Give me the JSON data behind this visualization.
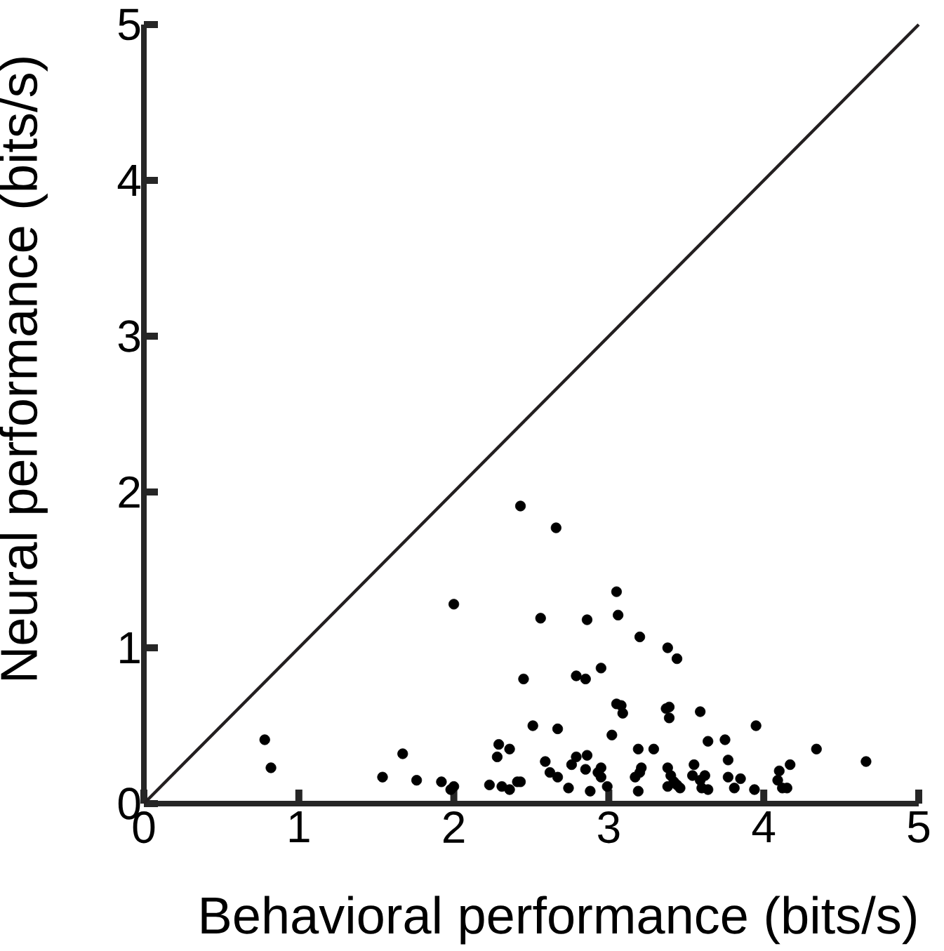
{
  "chart_data": {
    "type": "scatter",
    "xlabel": "Behavioral performance (bits/s)",
    "ylabel": "Neural performance (bits/s)",
    "xlim": [
      0,
      5
    ],
    "ylim": [
      0,
      5
    ],
    "xticks": [
      0,
      1,
      2,
      3,
      4,
      5
    ],
    "yticks": [
      0,
      1,
      2,
      3,
      4,
      5
    ],
    "grid": false,
    "series": [
      {
        "type": "line",
        "color": "#231f20",
        "x": [
          0,
          5
        ],
        "values": [
          0,
          5
        ],
        "marker": "none",
        "line_style": "solid"
      },
      {
        "color": "#000000",
        "marker": "circle",
        "x": [
          0.78,
          0.82,
          1.54,
          1.67,
          1.76,
          1.92,
          2.0,
          1.98,
          2.0,
          2.23,
          2.28,
          2.29,
          2.31,
          2.36,
          2.36,
          2.41,
          2.43,
          2.43,
          2.45,
          2.51,
          2.56,
          2.59,
          2.62,
          2.66,
          2.67,
          2.67,
          2.74,
          2.76,
          2.79,
          2.79,
          2.85,
          2.86,
          2.86,
          2.85,
          2.88,
          2.93,
          2.95,
          2.95,
          2.95,
          2.99,
          3.02,
          3.05,
          3.05,
          3.06,
          3.08,
          3.09,
          3.17,
          3.19,
          3.19,
          3.2,
          3.2,
          3.21,
          3.29,
          3.37,
          3.38,
          3.38,
          3.39,
          3.39,
          3.38,
          3.4,
          3.42,
          3.44,
          3.44,
          3.46,
          3.55,
          3.54,
          3.59,
          3.59,
          3.6,
          3.62,
          3.64,
          3.64,
          3.75,
          3.77,
          3.77,
          3.81,
          3.85,
          3.94,
          3.95,
          4.1,
          4.09,
          4.12,
          4.15,
          4.17,
          4.34,
          4.66
        ],
        "values": [
          0.41,
          0.23,
          0.17,
          0.32,
          0.15,
          0.14,
          0.11,
          0.09,
          1.28,
          0.12,
          0.3,
          0.38,
          0.11,
          0.35,
          0.09,
          0.14,
          0.14,
          1.91,
          0.8,
          0.5,
          1.19,
          0.27,
          0.2,
          1.77,
          0.48,
          0.17,
          0.1,
          0.25,
          0.3,
          0.82,
          0.8,
          1.18,
          0.31,
          0.22,
          0.08,
          0.2,
          0.23,
          0.87,
          0.17,
          0.11,
          0.44,
          1.36,
          0.64,
          1.21,
          0.63,
          0.58,
          0.17,
          0.35,
          0.08,
          1.07,
          0.2,
          0.23,
          0.35,
          0.61,
          1.0,
          0.23,
          0.62,
          0.55,
          0.11,
          0.18,
          0.14,
          0.12,
          0.93,
          0.1,
          0.25,
          0.18,
          0.59,
          0.15,
          0.1,
          0.18,
          0.09,
          0.4,
          0.41,
          0.28,
          0.17,
          0.1,
          0.16,
          0.09,
          0.5,
          0.21,
          0.15,
          0.1,
          0.1,
          0.25,
          0.35,
          0.27
        ]
      }
    ]
  }
}
